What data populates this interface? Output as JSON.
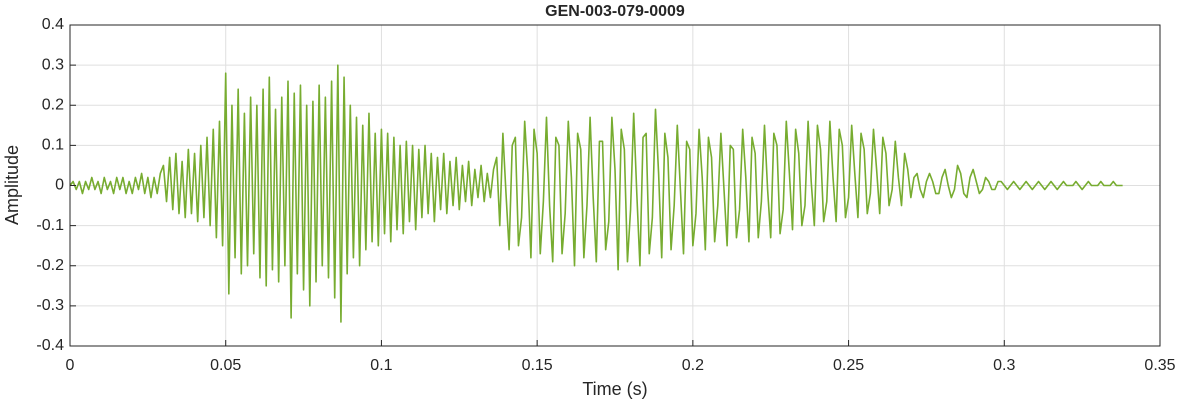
{
  "chart_data": {
    "type": "line",
    "title": "GEN-003-079-0009",
    "xlabel": "Time (s)",
    "ylabel": "Amplitude",
    "color": "#77ac30",
    "grid": true,
    "xlim": [
      0,
      0.35
    ],
    "xticks": [
      0,
      0.05,
      0.1,
      0.15,
      0.2,
      0.25,
      0.3,
      0.35
    ],
    "ylim": [
      -0.4,
      0.4
    ],
    "yticks": [
      -0.4,
      -0.3,
      -0.2,
      -0.1,
      0,
      0.1,
      0.2,
      0.3,
      0.4
    ],
    "x": [
      0,
      0.001,
      0.002,
      0.003,
      0.004,
      0.005,
      0.006,
      0.007,
      0.008,
      0.009,
      0.01,
      0.011,
      0.012,
      0.013,
      0.014,
      0.015,
      0.016,
      0.017,
      0.018,
      0.019,
      0.02,
      0.021,
      0.022,
      0.023,
      0.024,
      0.025,
      0.026,
      0.027,
      0.028,
      0.029,
      0.03,
      0.031,
      0.032,
      0.033,
      0.034,
      0.035,
      0.036,
      0.037,
      0.038,
      0.039,
      0.04,
      0.041,
      0.042,
      0.043,
      0.044,
      0.045,
      0.046,
      0.047,
      0.048,
      0.049,
      0.05,
      0.051,
      0.052,
      0.053,
      0.054,
      0.055,
      0.056,
      0.057,
      0.058,
      0.059,
      0.06,
      0.061,
      0.062,
      0.063,
      0.064,
      0.065,
      0.066,
      0.067,
      0.068,
      0.069,
      0.07,
      0.071,
      0.072,
      0.073,
      0.074,
      0.075,
      0.076,
      0.077,
      0.078,
      0.079,
      0.08,
      0.081,
      0.082,
      0.083,
      0.084,
      0.085,
      0.086,
      0.087,
      0.088,
      0.089,
      0.09,
      0.091,
      0.092,
      0.093,
      0.094,
      0.095,
      0.096,
      0.097,
      0.098,
      0.099,
      0.1,
      0.101,
      0.102,
      0.103,
      0.104,
      0.105,
      0.106,
      0.107,
      0.108,
      0.109,
      0.11,
      0.111,
      0.112,
      0.113,
      0.114,
      0.115,
      0.116,
      0.117,
      0.118,
      0.119,
      0.12,
      0.121,
      0.122,
      0.123,
      0.124,
      0.125,
      0.126,
      0.127,
      0.128,
      0.129,
      0.13,
      0.131,
      0.132,
      0.133,
      0.134,
      0.135,
      0.136,
      0.137,
      0.138,
      0.139,
      0.14,
      0.141,
      0.142,
      0.143,
      0.144,
      0.145,
      0.146,
      0.147,
      0.148,
      0.149,
      0.15,
      0.151,
      0.152,
      0.153,
      0.154,
      0.155,
      0.156,
      0.157,
      0.158,
      0.159,
      0.16,
      0.161,
      0.162,
      0.163,
      0.164,
      0.165,
      0.166,
      0.167,
      0.168,
      0.169,
      0.17,
      0.171,
      0.172,
      0.173,
      0.174,
      0.175,
      0.176,
      0.177,
      0.178,
      0.179,
      0.18,
      0.181,
      0.182,
      0.183,
      0.184,
      0.185,
      0.186,
      0.187,
      0.188,
      0.189,
      0.19,
      0.191,
      0.192,
      0.193,
      0.194,
      0.195,
      0.196,
      0.197,
      0.198,
      0.199,
      0.2,
      0.201,
      0.202,
      0.203,
      0.204,
      0.205,
      0.206,
      0.207,
      0.208,
      0.209,
      0.21,
      0.211,
      0.212,
      0.213,
      0.214,
      0.215,
      0.216,
      0.217,
      0.218,
      0.219,
      0.22,
      0.221,
      0.222,
      0.223,
      0.224,
      0.225,
      0.226,
      0.227,
      0.228,
      0.229,
      0.23,
      0.231,
      0.232,
      0.233,
      0.234,
      0.235,
      0.236,
      0.237,
      0.238,
      0.239,
      0.24,
      0.241,
      0.242,
      0.243,
      0.244,
      0.245,
      0.246,
      0.247,
      0.248,
      0.249,
      0.25,
      0.251,
      0.252,
      0.253,
      0.254,
      0.255,
      0.256,
      0.257,
      0.258,
      0.259,
      0.26,
      0.261,
      0.262,
      0.263,
      0.264,
      0.265,
      0.266,
      0.267,
      0.268,
      0.269,
      0.27,
      0.271,
      0.272,
      0.273,
      0.274,
      0.275,
      0.276,
      0.277,
      0.278,
      0.279,
      0.28,
      0.281,
      0.282,
      0.283,
      0.284,
      0.285,
      0.286,
      0.287,
      0.288,
      0.289,
      0.29,
      0.291,
      0.292,
      0.293,
      0.294,
      0.295,
      0.296,
      0.297,
      0.298,
      0.299,
      0.3,
      0.301,
      0.302,
      0.303,
      0.304,
      0.305,
      0.306,
      0.307,
      0.308,
      0.309,
      0.31,
      0.311,
      0.312,
      0.313,
      0.314,
      0.315,
      0.316,
      0.317,
      0.318,
      0.319,
      0.32,
      0.321,
      0.322,
      0.323,
      0.324,
      0.325,
      0.326,
      0.327,
      0.328,
      0.329,
      0.33,
      0.331,
      0.332,
      0.333,
      0.334,
      0.335,
      0.336,
      0.337,
      0.338
    ],
    "values": [
      0,
      0.01,
      -0.01,
      0.01,
      -0.02,
      0.01,
      -0.01,
      0.02,
      -0.01,
      0.01,
      -0.02,
      0.02,
      -0.01,
      0.01,
      -0.02,
      0.02,
      -0.01,
      0.02,
      -0.02,
      0.01,
      -0.02,
      0.02,
      -0.01,
      0.03,
      -0.02,
      0.02,
      -0.03,
      0.02,
      -0.02,
      0.03,
      0.05,
      -0.04,
      0.07,
      -0.06,
      0.08,
      -0.07,
      0.06,
      -0.08,
      0.09,
      -0.07,
      0.08,
      -0.09,
      0.1,
      -0.08,
      0.12,
      -0.1,
      0.14,
      -0.13,
      0.16,
      -0.15,
      0.28,
      -0.27,
      0.2,
      -0.18,
      0.24,
      -0.22,
      0.18,
      -0.2,
      0.22,
      -0.17,
      0.2,
      -0.23,
      0.24,
      -0.25,
      0.27,
      -0.21,
      0.19,
      -0.24,
      0.22,
      -0.2,
      0.26,
      -0.33,
      0.23,
      -0.22,
      0.25,
      -0.26,
      0.2,
      -0.3,
      0.21,
      -0.24,
      0.25,
      -0.2,
      0.22,
      -0.23,
      0.26,
      -0.28,
      0.3,
      -0.34,
      0.27,
      -0.22,
      0.2,
      -0.18,
      0.17,
      -0.2,
      0.15,
      -0.16,
      0.18,
      -0.14,
      0.13,
      -0.15,
      0.14,
      -0.12,
      0.13,
      -0.14,
      0.12,
      -0.11,
      0.1,
      -0.12,
      0.11,
      -0.09,
      0.1,
      -0.11,
      0.09,
      -0.08,
      0.1,
      -0.07,
      0.08,
      -0.09,
      0.07,
      -0.06,
      0.08,
      -0.07,
      0.06,
      -0.05,
      0.07,
      -0.06,
      0.05,
      -0.04,
      0.06,
      -0.05,
      0.04,
      -0.03,
      0.05,
      -0.04,
      0.03,
      -0.03,
      0.04,
      0.07,
      -0.1,
      0.13,
      -0.02,
      -0.16,
      0.1,
      0.12,
      -0.15,
      -0.08,
      0.16,
      0.03,
      -0.18,
      0.14,
      0.08,
      -0.17,
      -0.04,
      0.17,
      -0.05,
      -0.19,
      0.12,
      0.1,
      -0.17,
      -0.07,
      0.16,
      0.02,
      -0.2,
      0.13,
      0.09,
      -0.18,
      -0.05,
      0.17,
      -0.03,
      -0.19,
      0.11,
      0.11,
      -0.16,
      -0.09,
      0.17,
      0.04,
      -0.21,
      0.14,
      0.09,
      -0.19,
      -0.06,
      0.18,
      -0.02,
      -0.2,
      0.12,
      0.13,
      -0.17,
      -0.08,
      0.19,
      0.03,
      -0.18,
      0.13,
      0.07,
      -0.16,
      -0.05,
      0.15,
      -0.01,
      -0.17,
      0.11,
      0.09,
      -0.15,
      -0.07,
      0.14,
      0.02,
      -0.16,
      0.12,
      0.07,
      -0.14,
      -0.05,
      0.13,
      -0.01,
      -0.15,
      0.1,
      0.09,
      -0.13,
      -0.06,
      0.14,
      0.02,
      -0.14,
      0.12,
      0.08,
      -0.13,
      -0.04,
      0.15,
      -0.01,
      -0.13,
      0.13,
      0.1,
      -0.12,
      -0.06,
      0.16,
      0.03,
      -0.11,
      0.14,
      0.08,
      -0.1,
      -0.05,
      0.16,
      0.01,
      -0.1,
      0.15,
      0.09,
      -0.09,
      -0.04,
      0.16,
      0.02,
      -0.09,
      0.14,
      0.1,
      -0.08,
      -0.03,
      0.15,
      0.03,
      -0.08,
      0.13,
      0.09,
      -0.07,
      -0.02,
      0.14,
      0.04,
      -0.07,
      0.12,
      0.08,
      -0.05,
      -0.01,
      0.11,
      0.02,
      -0.05,
      0.08,
      0.04,
      -0.03,
      0.02,
      0.03,
      -0.01,
      -0.03,
      0.01,
      0.03,
      0.01,
      -0.02,
      -0.02,
      0.02,
      0.04,
      0,
      -0.03,
      -0.01,
      0.05,
      0.03,
      -0.02,
      -0.03,
      0.02,
      0.04,
      0.01,
      -0.02,
      -0.01,
      0.02,
      0.01,
      -0.01,
      -0.01,
      0.01,
      0.01,
      0,
      -0.01,
      0,
      0.01,
      0,
      -0.01,
      0,
      0.01,
      0,
      -0.01,
      0,
      0.01,
      0,
      -0.01,
      0,
      0.01,
      0,
      -0.01,
      0,
      0.01,
      0,
      0,
      0,
      0.01,
      0,
      -0.01,
      0,
      0.01,
      0,
      0,
      0,
      0.01,
      0,
      0,
      0,
      0.01,
      0,
      0,
      0
    ]
  }
}
